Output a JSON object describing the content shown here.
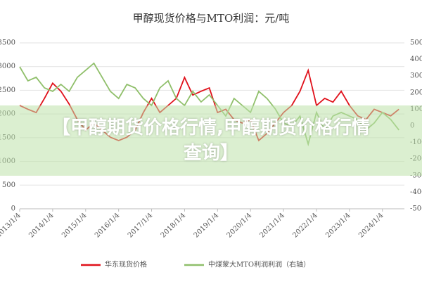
{
  "chart_data": {
    "type": "line",
    "title": "甲醇现货价格与MTO利润：元/吨",
    "overlay": "【甲醇期货价格行情,甲醇期货价格行情查询】",
    "x": [
      "2013/1/4",
      "2013/4/4",
      "2013/7/4",
      "2013/10/4",
      "2014/1/4",
      "2014/4/4",
      "2014/7/4",
      "2014/10/4",
      "2015/1/4",
      "2015/4/4",
      "2015/7/4",
      "2015/10/4",
      "2016/1/4",
      "2016/4/4",
      "2016/7/4",
      "2016/10/4",
      "2017/1/4",
      "2017/4/4",
      "2017/7/4",
      "2017/10/4",
      "2018/1/4",
      "2018/4/4",
      "2018/7/4",
      "2018/10/4",
      "2019/1/4",
      "2019/4/4",
      "2019/7/4",
      "2019/10/4",
      "2020/1/4",
      "2020/4/4",
      "2020/7/4",
      "2020/10/4",
      "2021/1/4",
      "2021/4/4",
      "2021/7/4",
      "2021/10/4",
      "2022/1/4",
      "2022/4/4",
      "2022/7/4",
      "2022/10/4",
      "2023/1/4",
      "2023/4/4",
      "2023/7/4",
      "2023/10/4",
      "2024/1/4",
      "2024/4/4",
      "2024/7/4"
    ],
    "series": [
      {
        "name": "华东现货价格",
        "color": "#e0101a",
        "values": [
          2180,
          2100,
          2030,
          2330,
          2650,
          2480,
          2210,
          1880,
          1660,
          1810,
          1660,
          1510,
          1440,
          1510,
          1660,
          2030,
          2330,
          2030,
          2180,
          2330,
          2770,
          2400,
          2480,
          2550,
          2030,
          2100,
          1880,
          1810,
          1880,
          1440,
          1590,
          1810,
          2030,
          2180,
          2480,
          2920,
          2180,
          2330,
          2250,
          2480,
          2180,
          1960,
          1880,
          2100,
          2030,
          1960,
          2100
        ]
      },
      {
        "name": "中煤蒙大MTO利润利润（右轴）",
        "color": "#8fbf6a",
        "axis": "y2",
        "values": [
          3560,
          2710,
          2930,
          2290,
          2080,
          2500,
          2080,
          2930,
          3350,
          3770,
          2930,
          2080,
          1650,
          2500,
          2290,
          1650,
          1230,
          2290,
          2710,
          1650,
          1230,
          2080,
          1440,
          1870,
          1230,
          590,
          1650,
          1230,
          810,
          2080,
          1650,
          1020,
          170,
          -40,
          590,
          -1100,
          810,
          -250,
          590,
          810,
          590,
          380,
          -250,
          170,
          810,
          380,
          -250
        ]
      }
    ],
    "xlim": [
      "2013/1/4",
      "2024/9/4"
    ],
    "xticks": [
      "2013/1/4",
      "2014/1/4",
      "2015/1/4",
      "2016/1/4",
      "2017/1/4",
      "2018/1/4",
      "2019/1/4",
      "2020/1/4",
      "2021/1/4",
      "2022/1/4",
      "2023/1/4",
      "2024/1/4"
    ],
    "ylim": [
      0,
      3500
    ],
    "yticks": [
      0,
      500,
      1000,
      1500,
      2000,
      2500,
      3000,
      3500
    ],
    "y2lim": [
      -5000,
      5000
    ],
    "y2ticks": [
      -5000,
      -4000,
      -3000,
      -2000,
      -1000,
      0,
      1000,
      2000,
      3000,
      4000,
      5000
    ],
    "grid": true
  }
}
